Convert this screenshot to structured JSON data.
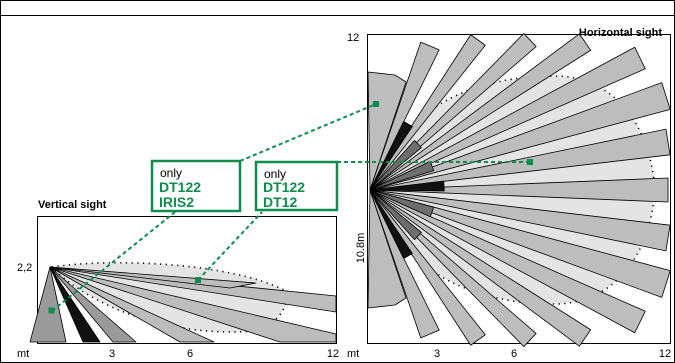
{
  "vertical": {
    "title": "Vertical sight",
    "height_label": "2,2",
    "x_unit": "mt",
    "x_ticks": [
      "3",
      "6",
      "12"
    ]
  },
  "horizontal": {
    "title": "Horizontal sight",
    "top_label": "12",
    "side_label": "10.8m",
    "x_unit": "mt",
    "x_ticks": [
      "3",
      "6",
      "12"
    ]
  },
  "callouts": [
    {
      "lines": [
        "only",
        "DT122",
        "IRIS2"
      ]
    },
    {
      "lines": [
        "only",
        "DT122",
        "DT12"
      ]
    }
  ],
  "colors": {
    "accent": "#0e8c4e",
    "beam_fill": "#bdbdbd",
    "beam_dark": "#111111",
    "zone_fill": "#e4e4e4"
  }
}
